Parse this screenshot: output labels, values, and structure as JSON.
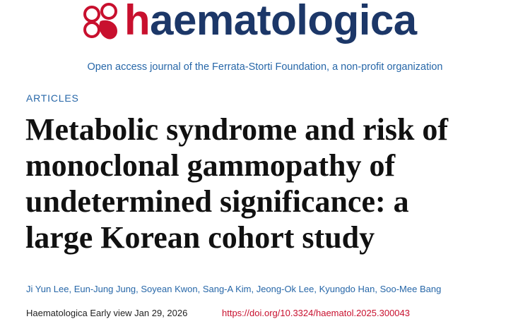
{
  "header": {
    "logo_text": "haematologica",
    "tagline": "Open access journal of the Ferrata-Storti Foundation, a non-profit organization"
  },
  "article": {
    "section": "ARTICLES",
    "title_lines": [
      "Metabolic syndrome and risk of",
      "monoclonal gammopathy of",
      "undetermined significance: a",
      "large Korean cohort study"
    ],
    "authors": "Ji Yun Lee, Eun-Jung Jung, Soyean Kwon, Sang-A Kim, Jeong-Ok Lee, Kyungdo Han, Soo-Mee Bang",
    "citation": "Haematologica Early view Jan 29, 2026",
    "doi": "https://doi.org/10.3324/haematol.2025.300043"
  }
}
